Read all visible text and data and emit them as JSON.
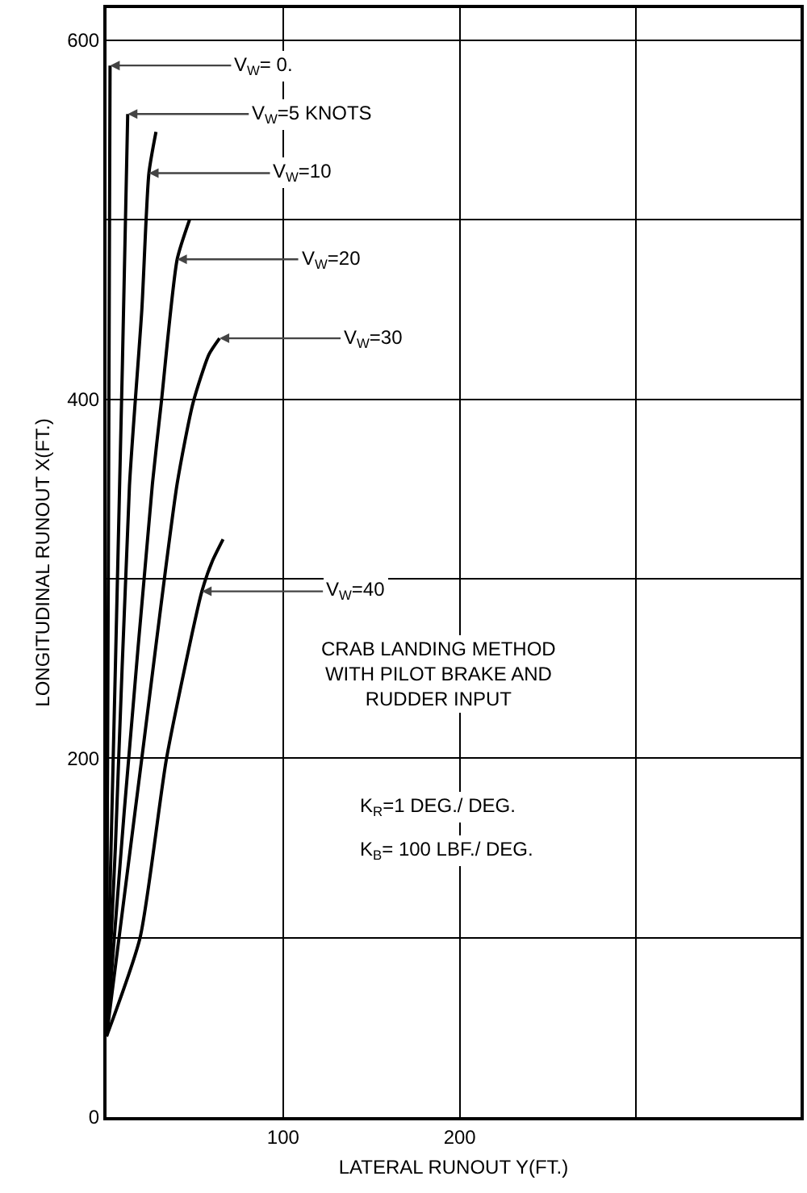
{
  "chart_data": {
    "type": "line",
    "xlabel": "LATERAL RUNOUT Y(FT.)",
    "ylabel": "LONGITUDINAL RUNOUT X(FT.)",
    "xlim": [
      0,
      393
    ],
    "ylim": [
      0,
      618
    ],
    "xticks": [
      100,
      200,
      {
        "value": 300,
        "label": null
      }
    ],
    "yticks": [
      0,
      {
        "value": 100,
        "label": null
      },
      200,
      {
        "value": 300,
        "label": null
      },
      400,
      {
        "value": 500,
        "label": null
      },
      600
    ],
    "grid": true,
    "marker": "none",
    "line_style": "solid",
    "series": [
      {
        "color": "#000000",
        "x": [
          0,
          1,
          2
        ],
        "values": [
          45,
          300,
          586
        ]
      },
      {
        "color": "#000000",
        "x": [
          0,
          5,
          9,
          12
        ],
        "values": [
          45,
          250,
          420,
          559
        ]
      },
      {
        "color": "#000000",
        "x": [
          0,
          5,
          13,
          20,
          24,
          28
        ],
        "values": [
          45,
          150,
          352,
          450,
          526,
          549
        ]
      },
      {
        "color": "#000000",
        "x": [
          0,
          10,
          26,
          31,
          40,
          47
        ],
        "values": [
          45,
          170,
          353,
          398,
          478,
          500
        ]
      },
      {
        "color": "#000000",
        "x": [
          0,
          20,
          40,
          49,
          58,
          64
        ],
        "values": [
          45,
          200,
          353,
          398,
          425,
          434
        ]
      },
      {
        "color": "#000000",
        "x": [
          0,
          19,
          34,
          54,
          60,
          66
        ],
        "values": [
          45,
          100,
          200,
          293,
          310,
          322
        ]
      }
    ],
    "annotations": [
      {
        "text": "V$_{W}$= 0.",
        "x": 2,
        "y": 586
      },
      {
        "text": "V$_{W}$=5 KNOTS",
        "x": 12,
        "y": 559
      },
      {
        "text": "V$_{W}$=10",
        "x": 24,
        "y": 526
      },
      {
        "text": "V$_{W}$=20",
        "x": 40,
        "y": 478
      },
      {
        "text": "V$_{W}$=30",
        "x": 64,
        "y": 434
      },
      {
        "text": "V$_{W}$=40",
        "x": 54,
        "y": 293
      },
      "CRAB LANDING METHOD WITH PILOT BRAKE AND RUDDER INPUT",
      "K$_{R}$=1 DEG./ DEG.",
      "K$_{B}$= 100 LBF./ DEG."
    ]
  }
}
